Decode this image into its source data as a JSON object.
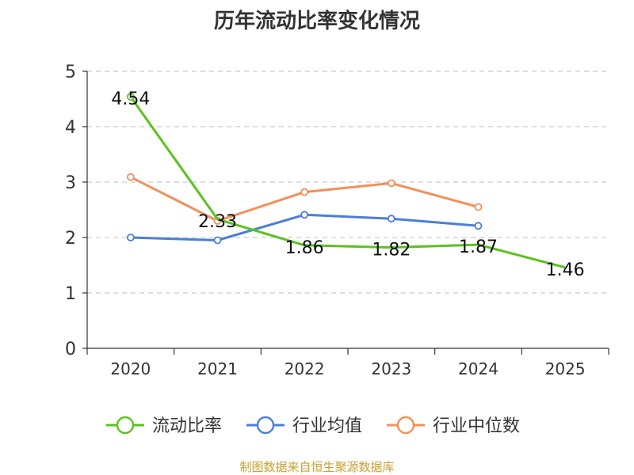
{
  "chart_data": {
    "type": "line",
    "title": "历年流动比率变化情况",
    "categories": [
      "2020",
      "2021",
      "2022",
      "2023",
      "2024",
      "2025"
    ],
    "ylim": [
      0,
      5
    ],
    "yticks": [
      "0",
      "1",
      "2",
      "3",
      "4",
      "5"
    ],
    "grid": true,
    "legend_position": "bottom",
    "series": [
      {
        "name": "流动比率",
        "color": "#5bc21f",
        "values": [
          4.54,
          2.33,
          1.86,
          1.82,
          1.87,
          1.46
        ],
        "labels": [
          "4.54",
          "2.33",
          "1.86",
          "1.82",
          "1.87",
          "1.46"
        ],
        "markers": [
          true,
          false,
          false,
          false,
          false,
          false
        ]
      },
      {
        "name": "行业均值",
        "color": "#4a7fd8",
        "values": [
          2.0,
          1.95,
          2.41,
          2.34,
          2.21,
          null
        ],
        "markers": [
          true,
          true,
          true,
          true,
          true,
          false
        ]
      },
      {
        "name": "行业中位数",
        "color": "#f48f59",
        "values": [
          3.09,
          2.3,
          2.82,
          2.98,
          2.55,
          null
        ],
        "markers": [
          true,
          true,
          true,
          true,
          true,
          false
        ]
      }
    ]
  },
  "source": "制图数据来自恒生聚源数据库"
}
